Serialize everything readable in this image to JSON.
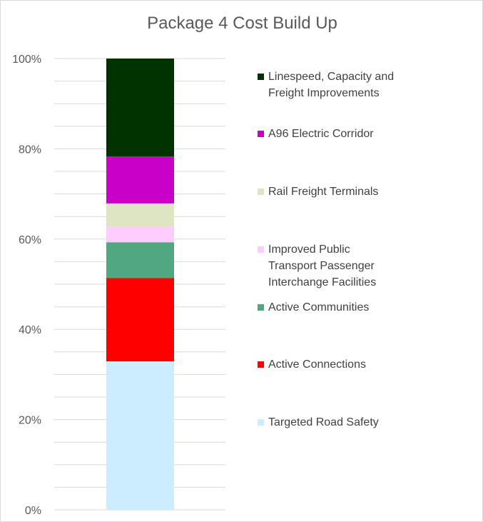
{
  "chart_data": {
    "type": "bar",
    "stacked": true,
    "normalized": true,
    "title": "Package 4 Cost Build Up",
    "categories": [
      ""
    ],
    "ylim": [
      0,
      100
    ],
    "y_tick_labels": [
      "0%",
      "20%",
      "40%",
      "60%",
      "80%",
      "100%"
    ],
    "y_ticks": [
      0,
      20,
      40,
      60,
      80,
      100
    ],
    "gridline_step": 5,
    "grid": true,
    "legend_position": "right",
    "series": [
      {
        "name": "Targeted Road Safety",
        "values": [
          32.9
        ],
        "color": "#CCECFF"
      },
      {
        "name": "Active Connections",
        "values": [
          18.5
        ],
        "color": "#FF0000"
      },
      {
        "name": "Active Communities",
        "values": [
          7.9
        ],
        "color": "#50A880"
      },
      {
        "name": "Improved Public Transport Passenger Interchange Facilities",
        "values": [
          3.5
        ],
        "color": "#FFCCFF"
      },
      {
        "name": "Rail Freight Terminals",
        "values": [
          5.1
        ],
        "color": "#DCE6C2"
      },
      {
        "name": "A96 Electric Corridor",
        "values": [
          10.4
        ],
        "color": "#C800C8"
      },
      {
        "name": "Linespeed, Capacity and Freight Improvements",
        "values": [
          21.7
        ],
        "color": "#003300"
      }
    ]
  }
}
